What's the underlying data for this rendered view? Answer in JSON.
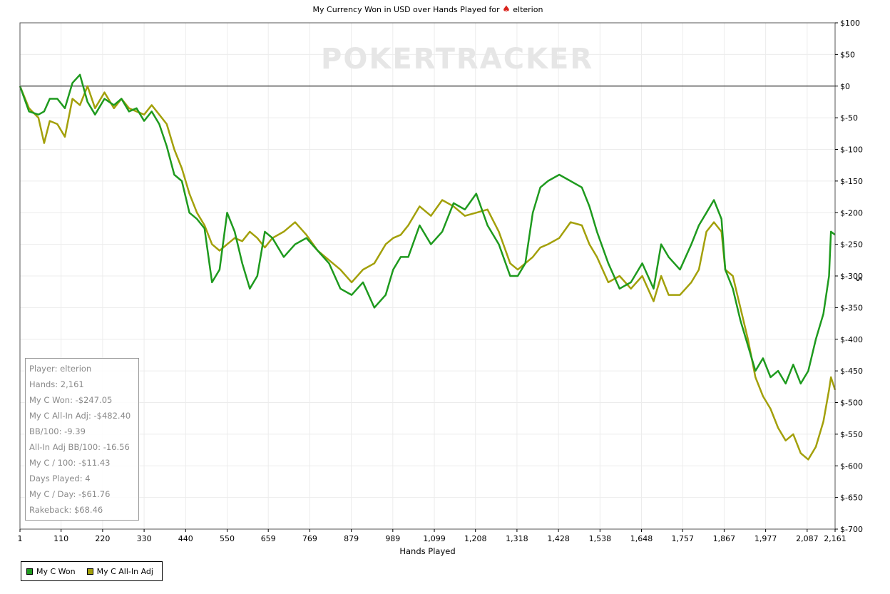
{
  "chart_data": {
    "type": "line",
    "title": "My Currency Won in USD over Hands Played for",
    "title_player": "elterion",
    "watermark": "POKERTRACKER",
    "xlabel": "Hands Played",
    "ylabel": "$",
    "xlim": [
      1,
      2161
    ],
    "ylim": [
      -700,
      100
    ],
    "x_ticks": [
      "1",
      "110",
      "220",
      "330",
      "440",
      "550",
      "659",
      "769",
      "879",
      "989",
      "1,099",
      "1,208",
      "1,318",
      "1,428",
      "1,538",
      "1,648",
      "1,757",
      "1,867",
      "1,977",
      "2,087",
      "2,161"
    ],
    "x_tick_values": [
      1,
      110,
      220,
      330,
      440,
      550,
      659,
      769,
      879,
      989,
      1099,
      1208,
      1318,
      1428,
      1538,
      1648,
      1757,
      1867,
      1977,
      2087,
      2161
    ],
    "y_ticks": [
      "$100",
      "$50",
      "$0",
      "$-50",
      "$-100",
      "$-150",
      "$-200",
      "$-250",
      "$-300",
      "$-350",
      "$-400",
      "$-450",
      "$-500",
      "$-550",
      "$-600",
      "$-650",
      "$-700"
    ],
    "y_tick_values": [
      100,
      50,
      0,
      -50,
      -100,
      -150,
      -200,
      -250,
      -300,
      -350,
      -400,
      -450,
      -500,
      -550,
      -600,
      -650,
      -700
    ],
    "grid": true,
    "legend_position": "bottom-left",
    "series": [
      {
        "name": "My C Won",
        "color": "#1e9a1e",
        "x": [
          1,
          25,
          50,
          65,
          80,
          100,
          120,
          140,
          160,
          180,
          200,
          225,
          250,
          270,
          290,
          310,
          330,
          350,
          370,
          390,
          410,
          430,
          450,
          470,
          490,
          510,
          530,
          550,
          570,
          590,
          610,
          630,
          650,
          670,
          700,
          730,
          760,
          790,
          820,
          850,
          880,
          910,
          940,
          970,
          990,
          1010,
          1030,
          1060,
          1090,
          1120,
          1150,
          1180,
          1210,
          1240,
          1270,
          1300,
          1320,
          1340,
          1360,
          1380,
          1400,
          1430,
          1460,
          1490,
          1510,
          1530,
          1560,
          1590,
          1620,
          1650,
          1680,
          1700,
          1720,
          1750,
          1780,
          1800,
          1820,
          1840,
          1860,
          1870,
          1890,
          1910,
          1930,
          1950,
          1970,
          1990,
          2010,
          2030,
          2050,
          2070,
          2090,
          2110,
          2130,
          2145,
          2150,
          2161
        ],
        "y": [
          0,
          -40,
          -45,
          -40,
          -20,
          -20,
          -35,
          5,
          18,
          -25,
          -45,
          -20,
          -30,
          -20,
          -40,
          -35,
          -55,
          -40,
          -60,
          -95,
          -140,
          -150,
          -200,
          -210,
          -225,
          -310,
          -290,
          -200,
          -230,
          -280,
          -320,
          -300,
          -230,
          -240,
          -270,
          -250,
          -240,
          -260,
          -280,
          -320,
          -330,
          -310,
          -350,
          -330,
          -290,
          -270,
          -270,
          -220,
          -250,
          -230,
          -185,
          -195,
          -170,
          -220,
          -250,
          -300,
          -300,
          -280,
          -200,
          -160,
          -150,
          -140,
          -150,
          -160,
          -190,
          -230,
          -280,
          -320,
          -310,
          -280,
          -320,
          -250,
          -270,
          -290,
          -250,
          -220,
          -200,
          -180,
          -210,
          -290,
          -320,
          -370,
          -410,
          -450,
          -430,
          -460,
          -450,
          -470,
          -440,
          -470,
          -450,
          -400,
          -360,
          -300,
          -230,
          -235
        ]
      },
      {
        "name": "My C All-In Adj",
        "color": "#a3a00a",
        "x": [
          1,
          25,
          50,
          65,
          80,
          100,
          120,
          140,
          160,
          180,
          200,
          225,
          250,
          270,
          290,
          310,
          330,
          350,
          370,
          390,
          410,
          430,
          450,
          470,
          490,
          510,
          530,
          550,
          570,
          590,
          610,
          630,
          650,
          670,
          700,
          730,
          760,
          790,
          820,
          850,
          880,
          910,
          940,
          970,
          990,
          1010,
          1030,
          1060,
          1090,
          1120,
          1150,
          1180,
          1210,
          1240,
          1270,
          1300,
          1320,
          1340,
          1360,
          1380,
          1400,
          1430,
          1460,
          1490,
          1510,
          1530,
          1560,
          1590,
          1620,
          1650,
          1680,
          1700,
          1720,
          1750,
          1780,
          1800,
          1820,
          1840,
          1860,
          1870,
          1890,
          1910,
          1930,
          1950,
          1970,
          1990,
          2010,
          2030,
          2050,
          2070,
          2090,
          2110,
          2130,
          2145,
          2150,
          2161
        ],
        "y": [
          0,
          -35,
          -50,
          -90,
          -55,
          -60,
          -80,
          -20,
          -30,
          0,
          -35,
          -10,
          -35,
          -20,
          -35,
          -40,
          -45,
          -30,
          -45,
          -60,
          -100,
          -130,
          -170,
          -200,
          -220,
          -250,
          -260,
          -250,
          -240,
          -245,
          -230,
          -240,
          -255,
          -240,
          -230,
          -215,
          -235,
          -260,
          -275,
          -290,
          -310,
          -290,
          -280,
          -250,
          -240,
          -235,
          -220,
          -190,
          -205,
          -180,
          -190,
          -205,
          -200,
          -195,
          -230,
          -280,
          -290,
          -280,
          -270,
          -255,
          -250,
          -240,
          -215,
          -220,
          -250,
          -270,
          -310,
          -300,
          -320,
          -300,
          -340,
          -300,
          -330,
          -330,
          -310,
          -290,
          -230,
          -215,
          -230,
          -290,
          -300,
          -350,
          -400,
          -460,
          -490,
          -510,
          -540,
          -560,
          -550,
          -580,
          -590,
          -570,
          -530,
          -480,
          -460,
          -480
        ]
      }
    ],
    "stats": [
      "Player: elterion",
      "Hands: 2,161",
      "My C Won: -$247.05",
      "My C All-In Adj: -$482.40",
      "BB/100: -9.39",
      "All-In Adj BB/100: -16.56",
      "My C / 100: -$11.43",
      "Days Played: 4",
      "My C / Day: -$61.76",
      "Rakeback: $68.46"
    ]
  }
}
